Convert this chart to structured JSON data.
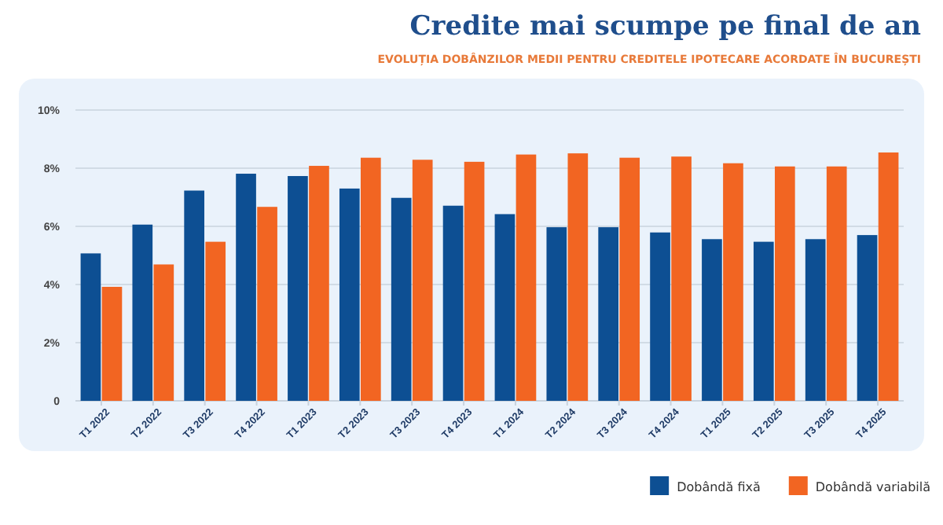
{
  "chart_data": {
    "type": "bar",
    "title": "Credite mai scumpe pe final de an",
    "subtitle": "EVOLUȚIA DOBÂNZILOR MEDII PENTRU CREDITELE IPOTECARE ACORDATE ÎN BUCUREȘTI",
    "categories": [
      "T1 2022",
      "T2 2022",
      "T3 2022",
      "T4 2022",
      "T1 2023",
      "T2 2023",
      "T3 2023",
      "T4 2023",
      "T1 2024",
      "T2 2024",
      "T3 2024",
      "T4 2024",
      "T1 2025",
      "T2 2025",
      "T3 2025",
      "T4 2025"
    ],
    "series": [
      {
        "name": "Dobândă fixă",
        "color": "#0d4f93",
        "values": [
          5.07,
          6.06,
          7.23,
          7.81,
          7.73,
          7.3,
          6.98,
          6.71,
          6.42,
          5.97,
          5.97,
          5.79,
          5.56,
          5.47,
          5.56,
          5.7
        ]
      },
      {
        "name": "Dobândă variabilă",
        "color": "#f26522",
        "values": [
          3.92,
          4.69,
          5.47,
          6.67,
          8.08,
          8.36,
          8.29,
          8.22,
          8.47,
          8.51,
          8.36,
          8.4,
          8.17,
          8.06,
          8.06,
          8.54
        ]
      }
    ],
    "ylim": [
      0,
      10
    ],
    "yticks": [
      {
        "value": 0,
        "label": "0"
      },
      {
        "value": 2,
        "label": "2%"
      },
      {
        "value": 4,
        "label": "4%"
      },
      {
        "value": 6,
        "label": "6%"
      },
      {
        "value": 8,
        "label": "8%"
      },
      {
        "value": 10,
        "label": "10%"
      }
    ],
    "grid": "y",
    "legend": "bottom right"
  }
}
